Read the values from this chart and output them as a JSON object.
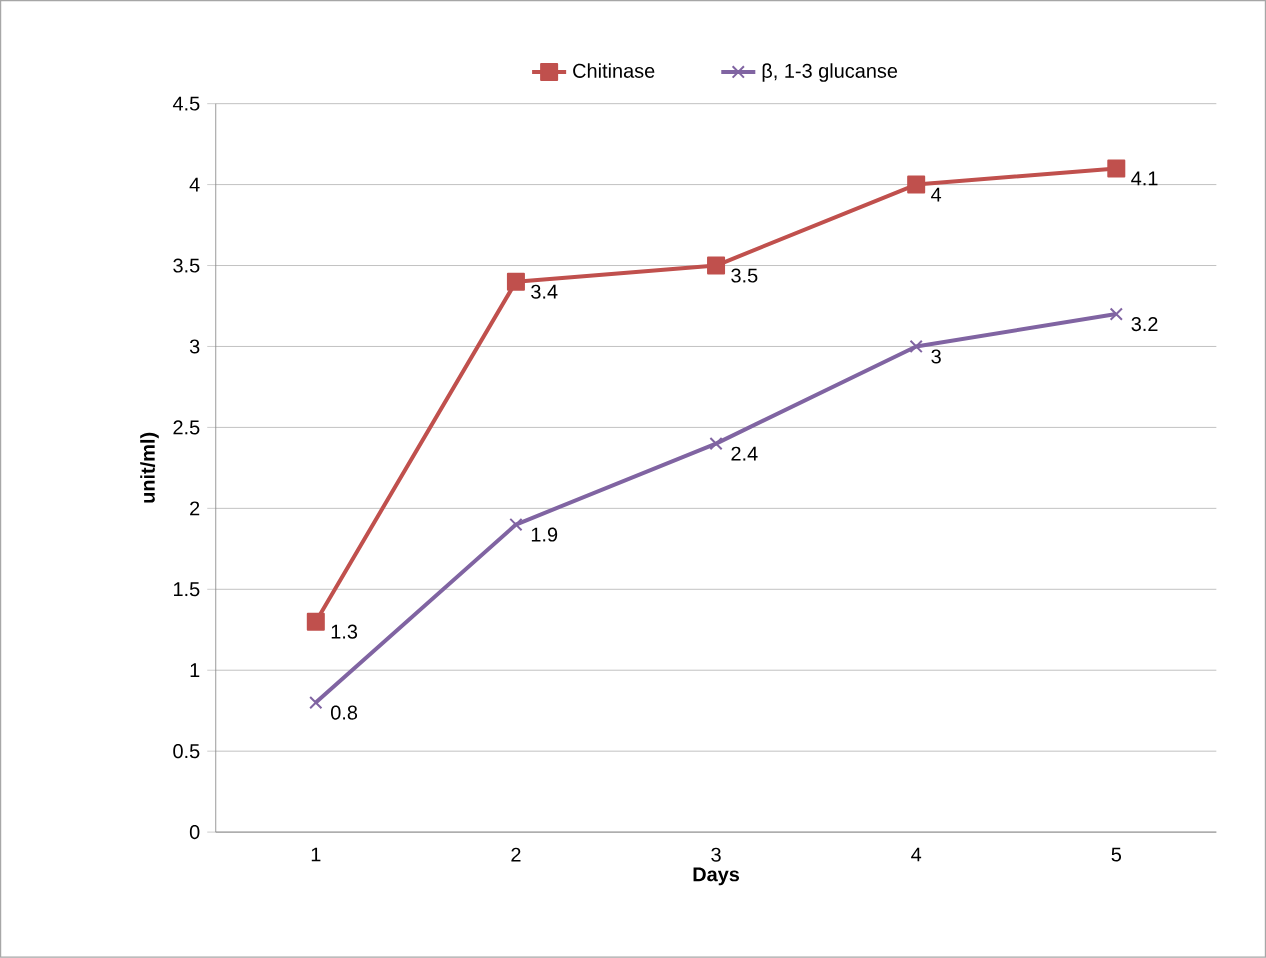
{
  "chart_data": {
    "type": "line",
    "xlabel": "Days",
    "ylabel": "unit/ml)",
    "categories": [
      "1",
      "2",
      "3",
      "4",
      "5"
    ],
    "series": [
      {
        "name": "Chitinase",
        "color": "#c0504d",
        "marker": "square",
        "values": [
          1.3,
          3.4,
          3.5,
          4,
          4.1
        ]
      },
      {
        "name": "β, 1-3 glucanse",
        "color": "#8064a2",
        "marker": "cross",
        "values": [
          0.8,
          1.9,
          2.4,
          3,
          3.2
        ]
      }
    ],
    "ylim": [
      0,
      4.5
    ],
    "yticks": [
      0,
      0.5,
      1,
      1.5,
      2,
      2.5,
      3,
      3.5,
      4,
      4.5
    ],
    "grid": "y",
    "legend": "top",
    "data_labels": true
  }
}
